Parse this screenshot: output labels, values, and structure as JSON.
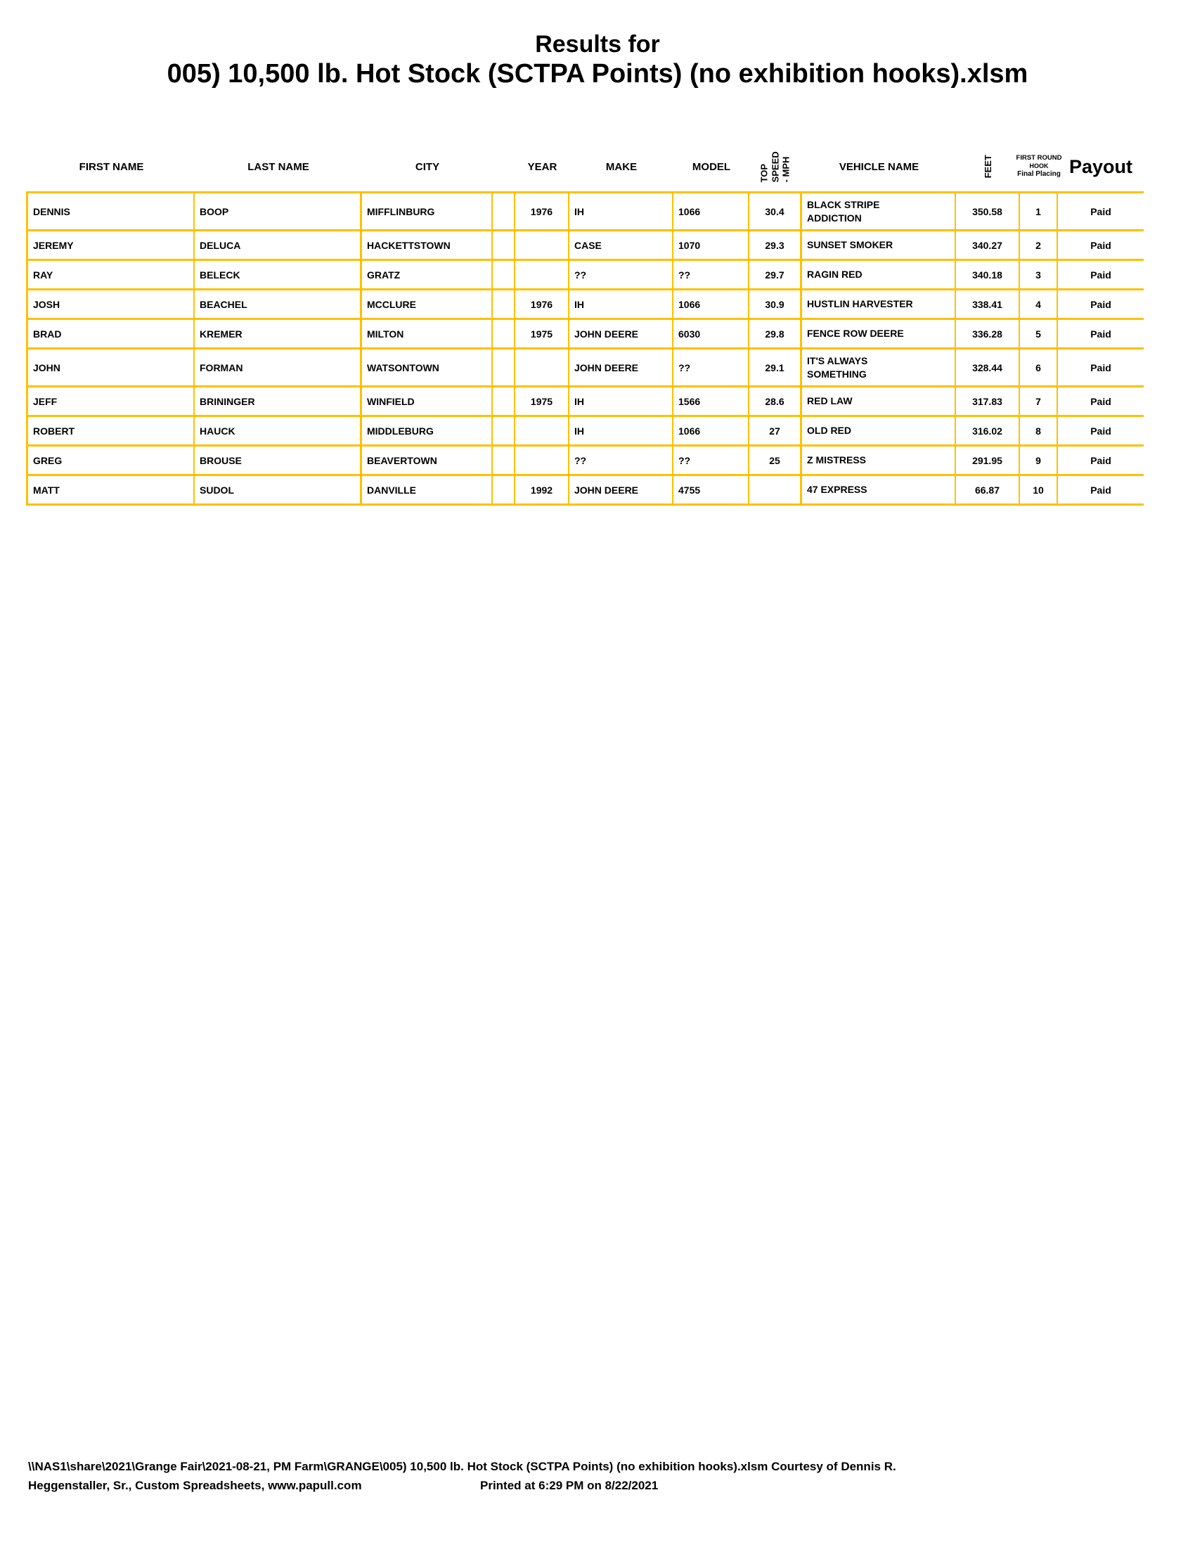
{
  "title": {
    "line1": "Results for",
    "line2": "005) 10,500 lb. Hot Stock (SCTPA Points) (no exhibition hooks).xlsm"
  },
  "colors": {
    "grid_border": "#FFC000",
    "text": "#000000"
  },
  "table": {
    "headers": {
      "first_name": "FIRST NAME",
      "last_name": "LAST NAME",
      "city": "CITY",
      "year": "YEAR",
      "make": "MAKE",
      "model": "MODEL",
      "top_speed": "TOP\nSPEED\n- MPH",
      "vehicle_name": "VEHICLE NAME",
      "feet": "FEET",
      "hook_line1": "FIRST ROUND",
      "hook_line2": "HOOK",
      "hook_line3": "Final Placing",
      "payout": "Payout"
    },
    "rows": [
      {
        "first_name": "DENNIS",
        "last_name": "BOOP",
        "city": "MIFFLINBURG",
        "year": "1976",
        "make": "IH",
        "model": "1066",
        "speed": "30.4",
        "vehicle": "BLACK STRIPE\nADDICTION",
        "feet": "350.58",
        "placing": "1",
        "payout": "Paid"
      },
      {
        "first_name": "JEREMY",
        "last_name": "DELUCA",
        "city": "HACKETTSTOWN",
        "year": "",
        "make": "CASE",
        "model": "1070",
        "speed": "29.3",
        "vehicle": "SUNSET SMOKER",
        "feet": "340.27",
        "placing": "2",
        "payout": "Paid"
      },
      {
        "first_name": "RAY",
        "last_name": "BELECK",
        "city": "GRATZ",
        "year": "",
        "make": "??",
        "model": "??",
        "speed": "29.7",
        "vehicle": "RAGIN RED",
        "feet": "340.18",
        "placing": "3",
        "payout": "Paid"
      },
      {
        "first_name": "JOSH",
        "last_name": "BEACHEL",
        "city": "MCCLURE",
        "year": "1976",
        "make": "IH",
        "model": "1066",
        "speed": "30.9",
        "vehicle": "HUSTLIN HARVESTER",
        "feet": "338.41",
        "placing": "4",
        "payout": "Paid"
      },
      {
        "first_name": "BRAD",
        "last_name": "KREMER",
        "city": "MILTON",
        "year": "1975",
        "make": "JOHN DEERE",
        "model": "6030",
        "speed": "29.8",
        "vehicle": "FENCE ROW DEERE",
        "feet": "336.28",
        "placing": "5",
        "payout": "Paid"
      },
      {
        "first_name": "JOHN",
        "last_name": "FORMAN",
        "city": "WATSONTOWN",
        "year": "",
        "make": "JOHN DEERE",
        "model": "??",
        "speed": "29.1",
        "vehicle": "IT'S ALWAYS\nSOMETHING",
        "feet": "328.44",
        "placing": "6",
        "payout": "Paid"
      },
      {
        "first_name": "JEFF",
        "last_name": "BRININGER",
        "city": "WINFIELD",
        "year": "1975",
        "make": "IH",
        "model": "1566",
        "speed": "28.6",
        "vehicle": "RED LAW",
        "feet": "317.83",
        "placing": "7",
        "payout": "Paid"
      },
      {
        "first_name": "ROBERT",
        "last_name": "HAUCK",
        "city": "MIDDLEBURG",
        "year": "",
        "make": "IH",
        "model": "1066",
        "speed": "27",
        "vehicle": "OLD RED",
        "feet": "316.02",
        "placing": "8",
        "payout": "Paid"
      },
      {
        "first_name": "GREG",
        "last_name": "BROUSE",
        "city": "BEAVERTOWN",
        "year": "",
        "make": "??",
        "model": "??",
        "speed": "25",
        "vehicle": "Z MISTRESS",
        "feet": "291.95",
        "placing": "9",
        "payout": "Paid"
      },
      {
        "first_name": "MATT",
        "last_name": "SUDOL",
        "city": "DANVILLE",
        "year": "1992",
        "make": "JOHN DEERE",
        "model": "4755",
        "speed": "",
        "vehicle": "47 EXPRESS",
        "feet": "66.87",
        "placing": "10",
        "payout": "Paid"
      }
    ]
  },
  "footer": {
    "line1": "\\\\NAS1\\share\\2021\\Grange Fair\\2021-08-21, PM Farm\\GRANGE\\005) 10,500 lb. Hot Stock (SCTPA Points) (no exhibition hooks).xlsm  Courtesy of Dennis R.",
    "line2_left": "Heggenstaller, Sr., Custom Spreadsheets, www.papull.com",
    "line2_right": "Printed at 6:29 PM on 8/22/2021"
  }
}
